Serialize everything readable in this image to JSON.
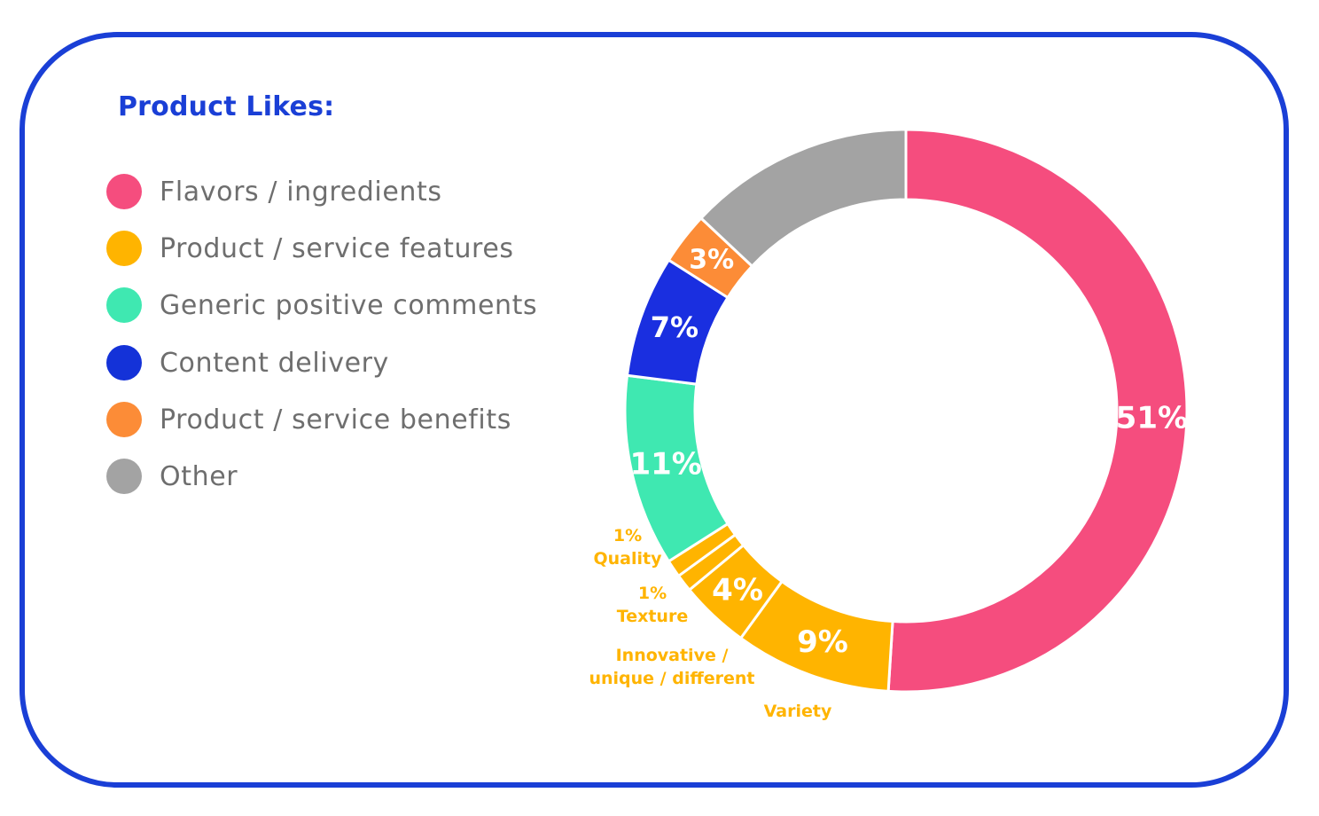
{
  "chart_data": {
    "type": "pie",
    "title": "Product Likes:",
    "legend": [
      {
        "name": "Flavors / ingredients",
        "color": "#f54d7e"
      },
      {
        "name": "Product / service features",
        "color": "#ffb400"
      },
      {
        "name": "Generic positive comments",
        "color": "#3fe8b1"
      },
      {
        "name": "Content delivery",
        "color": "#1432d8"
      },
      {
        "name": "Product / service benefits",
        "color": "#fc8c37"
      },
      {
        "name": "Other",
        "color": "#a3a3a3"
      }
    ],
    "slices": [
      {
        "category": "Flavors / ingredients",
        "value": 51,
        "label": "51%",
        "color": "#f54d7e"
      },
      {
        "category": "Product / service features",
        "sub": "Variety",
        "value": 9,
        "label": "9%",
        "color": "#ffb400"
      },
      {
        "category": "Product / service features",
        "sub": "Innovative / unique / different",
        "value": 4,
        "label": "4%",
        "color": "#ffb400"
      },
      {
        "category": "Product / service features",
        "sub": "Texture",
        "value": 1,
        "label": "",
        "color": "#ffb400"
      },
      {
        "category": "Product / service features",
        "sub": "Quality",
        "value": 1,
        "label": "",
        "color": "#ffb400"
      },
      {
        "category": "Generic positive comments",
        "value": 11,
        "label": "11%",
        "color": "#3fe8b1"
      },
      {
        "category": "Content delivery",
        "value": 7,
        "label": "7%",
        "color": "#1a2fe0"
      },
      {
        "category": "Product / service benefits",
        "value": 3,
        "label": "3%",
        "color": "#fc8c37"
      },
      {
        "category": "Other",
        "value": 13,
        "label": "",
        "color": "#a3a3a3"
      }
    ],
    "callouts": [
      {
        "lines": [
          "1%",
          "Quality"
        ],
        "color": "#ffb400"
      },
      {
        "lines": [
          "1%",
          "Texture"
        ],
        "color": "#ffb400"
      },
      {
        "lines": [
          "Innovative /",
          "unique / different"
        ],
        "color": "#ffb400"
      },
      {
        "lines": [
          "Variety"
        ],
        "color": "#ffb400"
      }
    ],
    "legend_position": "left"
  }
}
